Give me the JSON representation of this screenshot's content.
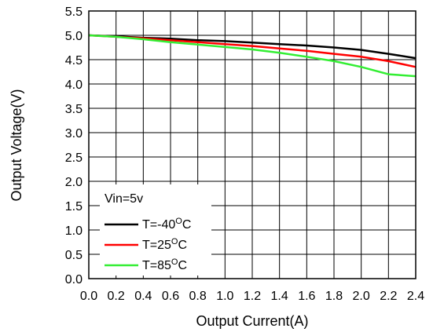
{
  "chart_data": {
    "type": "line",
    "xlabel": "Output Current(A)",
    "ylabel": "Output Voltage(V)",
    "xlim": [
      0.0,
      2.4
    ],
    "ylim": [
      0.0,
      5.5
    ],
    "grid": true,
    "x_ticks": [
      "0.0",
      "0.2",
      "0.4",
      "0.6",
      "0.8",
      "1.0",
      "1.2",
      "1.4",
      "1.6",
      "1.8",
      "2.0",
      "2.2",
      "2.4"
    ],
    "y_ticks": [
      "0.0",
      "0.5",
      "1.0",
      "1.5",
      "2.0",
      "2.5",
      "3.0",
      "3.5",
      "4.0",
      "4.5",
      "5.0",
      "5.5"
    ],
    "legend": {
      "title": "Vin=5v",
      "placement": "bottom-left",
      "entries": [
        {
          "prefix": "T=-40",
          "sup": "O",
          "suffix": "C"
        },
        {
          "prefix": "T=25",
          "sup": "O",
          "suffix": "C"
        },
        {
          "prefix": "T=85",
          "sup": "O",
          "suffix": "C"
        }
      ]
    },
    "x": [
      0.0,
      0.2,
      0.4,
      0.6,
      0.8,
      1.0,
      1.2,
      1.4,
      1.6,
      1.8,
      2.0,
      2.2,
      2.4
    ],
    "series": [
      {
        "name": "T=-40°C",
        "color": "#000000",
        "values": [
          5.0,
          4.98,
          4.95,
          4.93,
          4.9,
          4.88,
          4.85,
          4.82,
          4.79,
          4.75,
          4.7,
          4.62,
          4.53
        ]
      },
      {
        "name": "T=25°C",
        "color": "#ff0000",
        "values": [
          5.0,
          4.97,
          4.94,
          4.9,
          4.86,
          4.82,
          4.78,
          4.73,
          4.68,
          4.62,
          4.56,
          4.47,
          4.35
        ]
      },
      {
        "name": "T=85°C",
        "color": "#33ee33",
        "values": [
          5.0,
          4.97,
          4.92,
          4.86,
          4.81,
          4.76,
          4.71,
          4.64,
          4.56,
          4.47,
          4.35,
          4.2,
          4.16
        ]
      }
    ]
  }
}
